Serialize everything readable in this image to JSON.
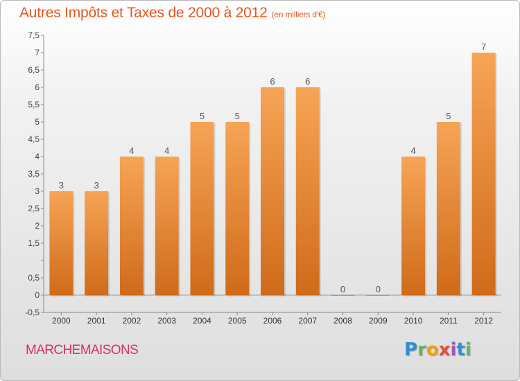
{
  "header": {
    "title": "Autres Impôts et Taxes de 2000 à 2012",
    "unit": "(en milliers d'€)"
  },
  "footer": {
    "commune": "MARCHEMAISONS",
    "logo": [
      "P",
      "r",
      "o",
      "x",
      "i",
      "t",
      "i"
    ]
  },
  "colors": {
    "bar_light": "#f7a456",
    "bar_dark": "#cf6b1a",
    "title": "#e2581f",
    "commune": "#d6306e"
  },
  "chart_data": {
    "type": "bar",
    "categories": [
      "2000",
      "2001",
      "2002",
      "2003",
      "2004",
      "2005",
      "2006",
      "2007",
      "2008",
      "2009",
      "2010",
      "2011",
      "2012"
    ],
    "values": [
      3,
      3,
      4,
      4,
      5,
      5,
      6,
      6,
      0,
      0,
      4,
      5,
      7
    ],
    "data_labels": [
      "3",
      "3",
      "4",
      "4",
      "5",
      "5",
      "6",
      "6",
      "0",
      "0",
      "4",
      "5",
      "7"
    ],
    "title": "Autres Impôts et Taxes de 2000 à 2012",
    "xlabel": "",
    "ylabel": "",
    "ylim": [
      -0.5,
      7.5
    ],
    "yticks": [
      -0.5,
      0,
      0.5,
      1,
      1.5,
      2,
      2.5,
      3,
      3.5,
      4,
      4.5,
      5,
      5.5,
      6,
      6.5,
      7,
      7.5
    ],
    "ytick_labels": [
      "-0,5",
      "0",
      "0,5",
      "",
      "1,5",
      "2",
      "2,5",
      "3",
      "3,5",
      "4",
      "4,5",
      "5",
      "5,5",
      "6",
      "6,5",
      "7",
      "7,5"
    ],
    "grid": false,
    "legend": "none"
  }
}
